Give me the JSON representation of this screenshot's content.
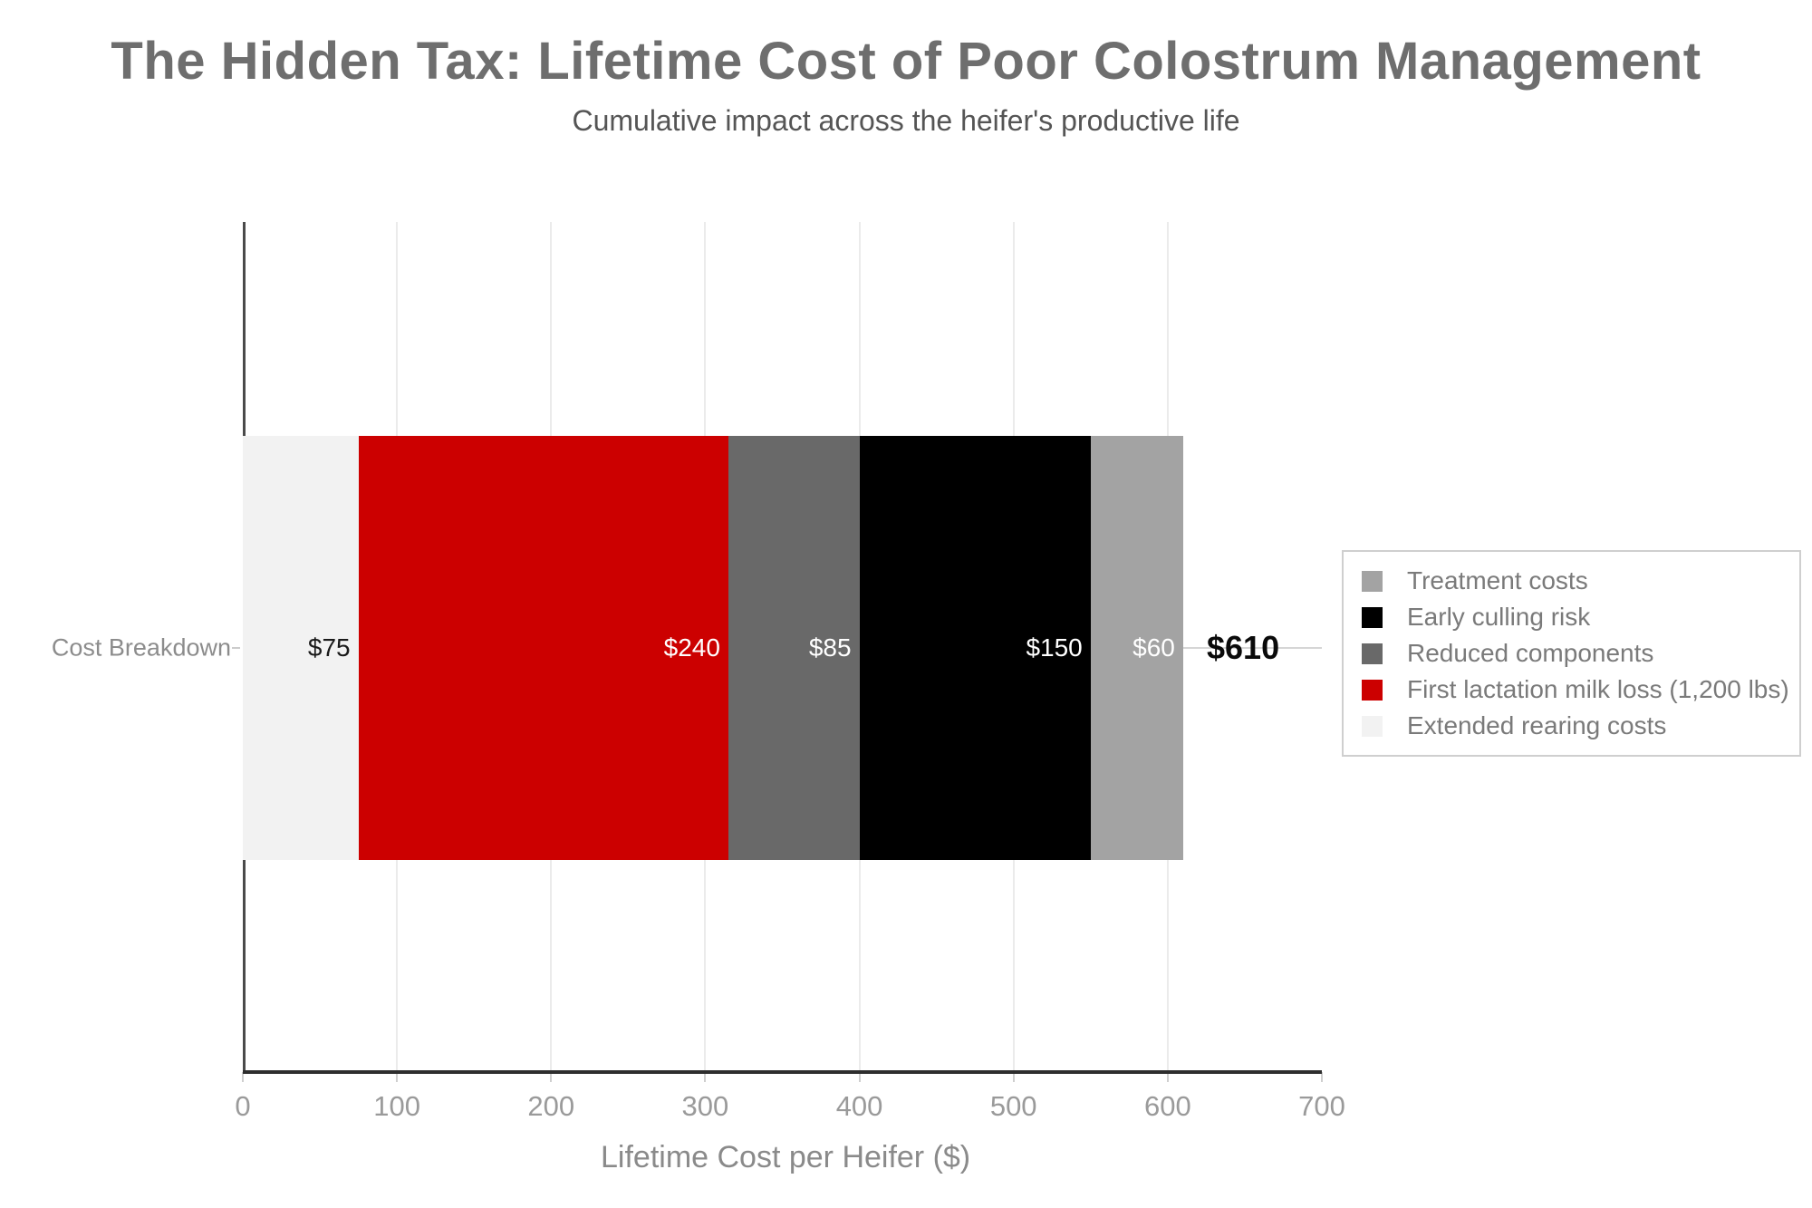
{
  "title": "The Hidden Tax: Lifetime Cost of Poor Colostrum Management",
  "subtitle": "Cumulative impact across the heifer's productive life",
  "chart_data": {
    "type": "bar",
    "orientation": "horizontal",
    "stacked": true,
    "title": "The Hidden Tax: Lifetime Cost of Poor Colostrum Management",
    "subtitle": "Cumulative impact across the heifer's productive life",
    "category": "Cost Breakdown",
    "xlabel": "Lifetime Cost per Heifer ($)",
    "xlim": [
      0,
      700
    ],
    "x_ticks": [
      0,
      100,
      200,
      300,
      400,
      500,
      600,
      700
    ],
    "grid": "vertical",
    "segments": [
      {
        "name": "Extended rearing costs",
        "value": 75,
        "label": "$75",
        "color": "#f2f2f2",
        "label_color": "#1a1a1a"
      },
      {
        "name": "First lactation milk loss (1,200 lbs)",
        "value": 240,
        "label": "$240",
        "color": "#cc0000",
        "label_color": "#ffffff"
      },
      {
        "name": "Reduced components",
        "value": 85,
        "label": "$85",
        "color": "#696969",
        "label_color": "#ffffff"
      },
      {
        "name": "Early culling risk",
        "value": 150,
        "label": "$150",
        "color": "#000000",
        "label_color": "#ffffff"
      },
      {
        "name": "Treatment costs",
        "value": 60,
        "label": "$60",
        "color": "#a3a3a3",
        "label_color": "#ffffff"
      }
    ],
    "total": {
      "value": 610,
      "label": "$610"
    },
    "legend": {
      "position": "right",
      "entries": [
        {
          "label": "Treatment costs",
          "color": "#a3a3a3"
        },
        {
          "label": "Early culling risk",
          "color": "#000000"
        },
        {
          "label": "Reduced components",
          "color": "#696969"
        },
        {
          "label": "First lactation milk loss (1,200 lbs)",
          "color": "#cc0000"
        },
        {
          "label": "Extended rearing costs",
          "color": "#f2f2f2"
        }
      ]
    }
  },
  "colors": {
    "accent_red": "#cc0000",
    "axis_line": "#2e2e2e",
    "gridline": "#ebebeb",
    "tick_label": "#9a9a9a",
    "title_gray": "#6e6e6e"
  }
}
